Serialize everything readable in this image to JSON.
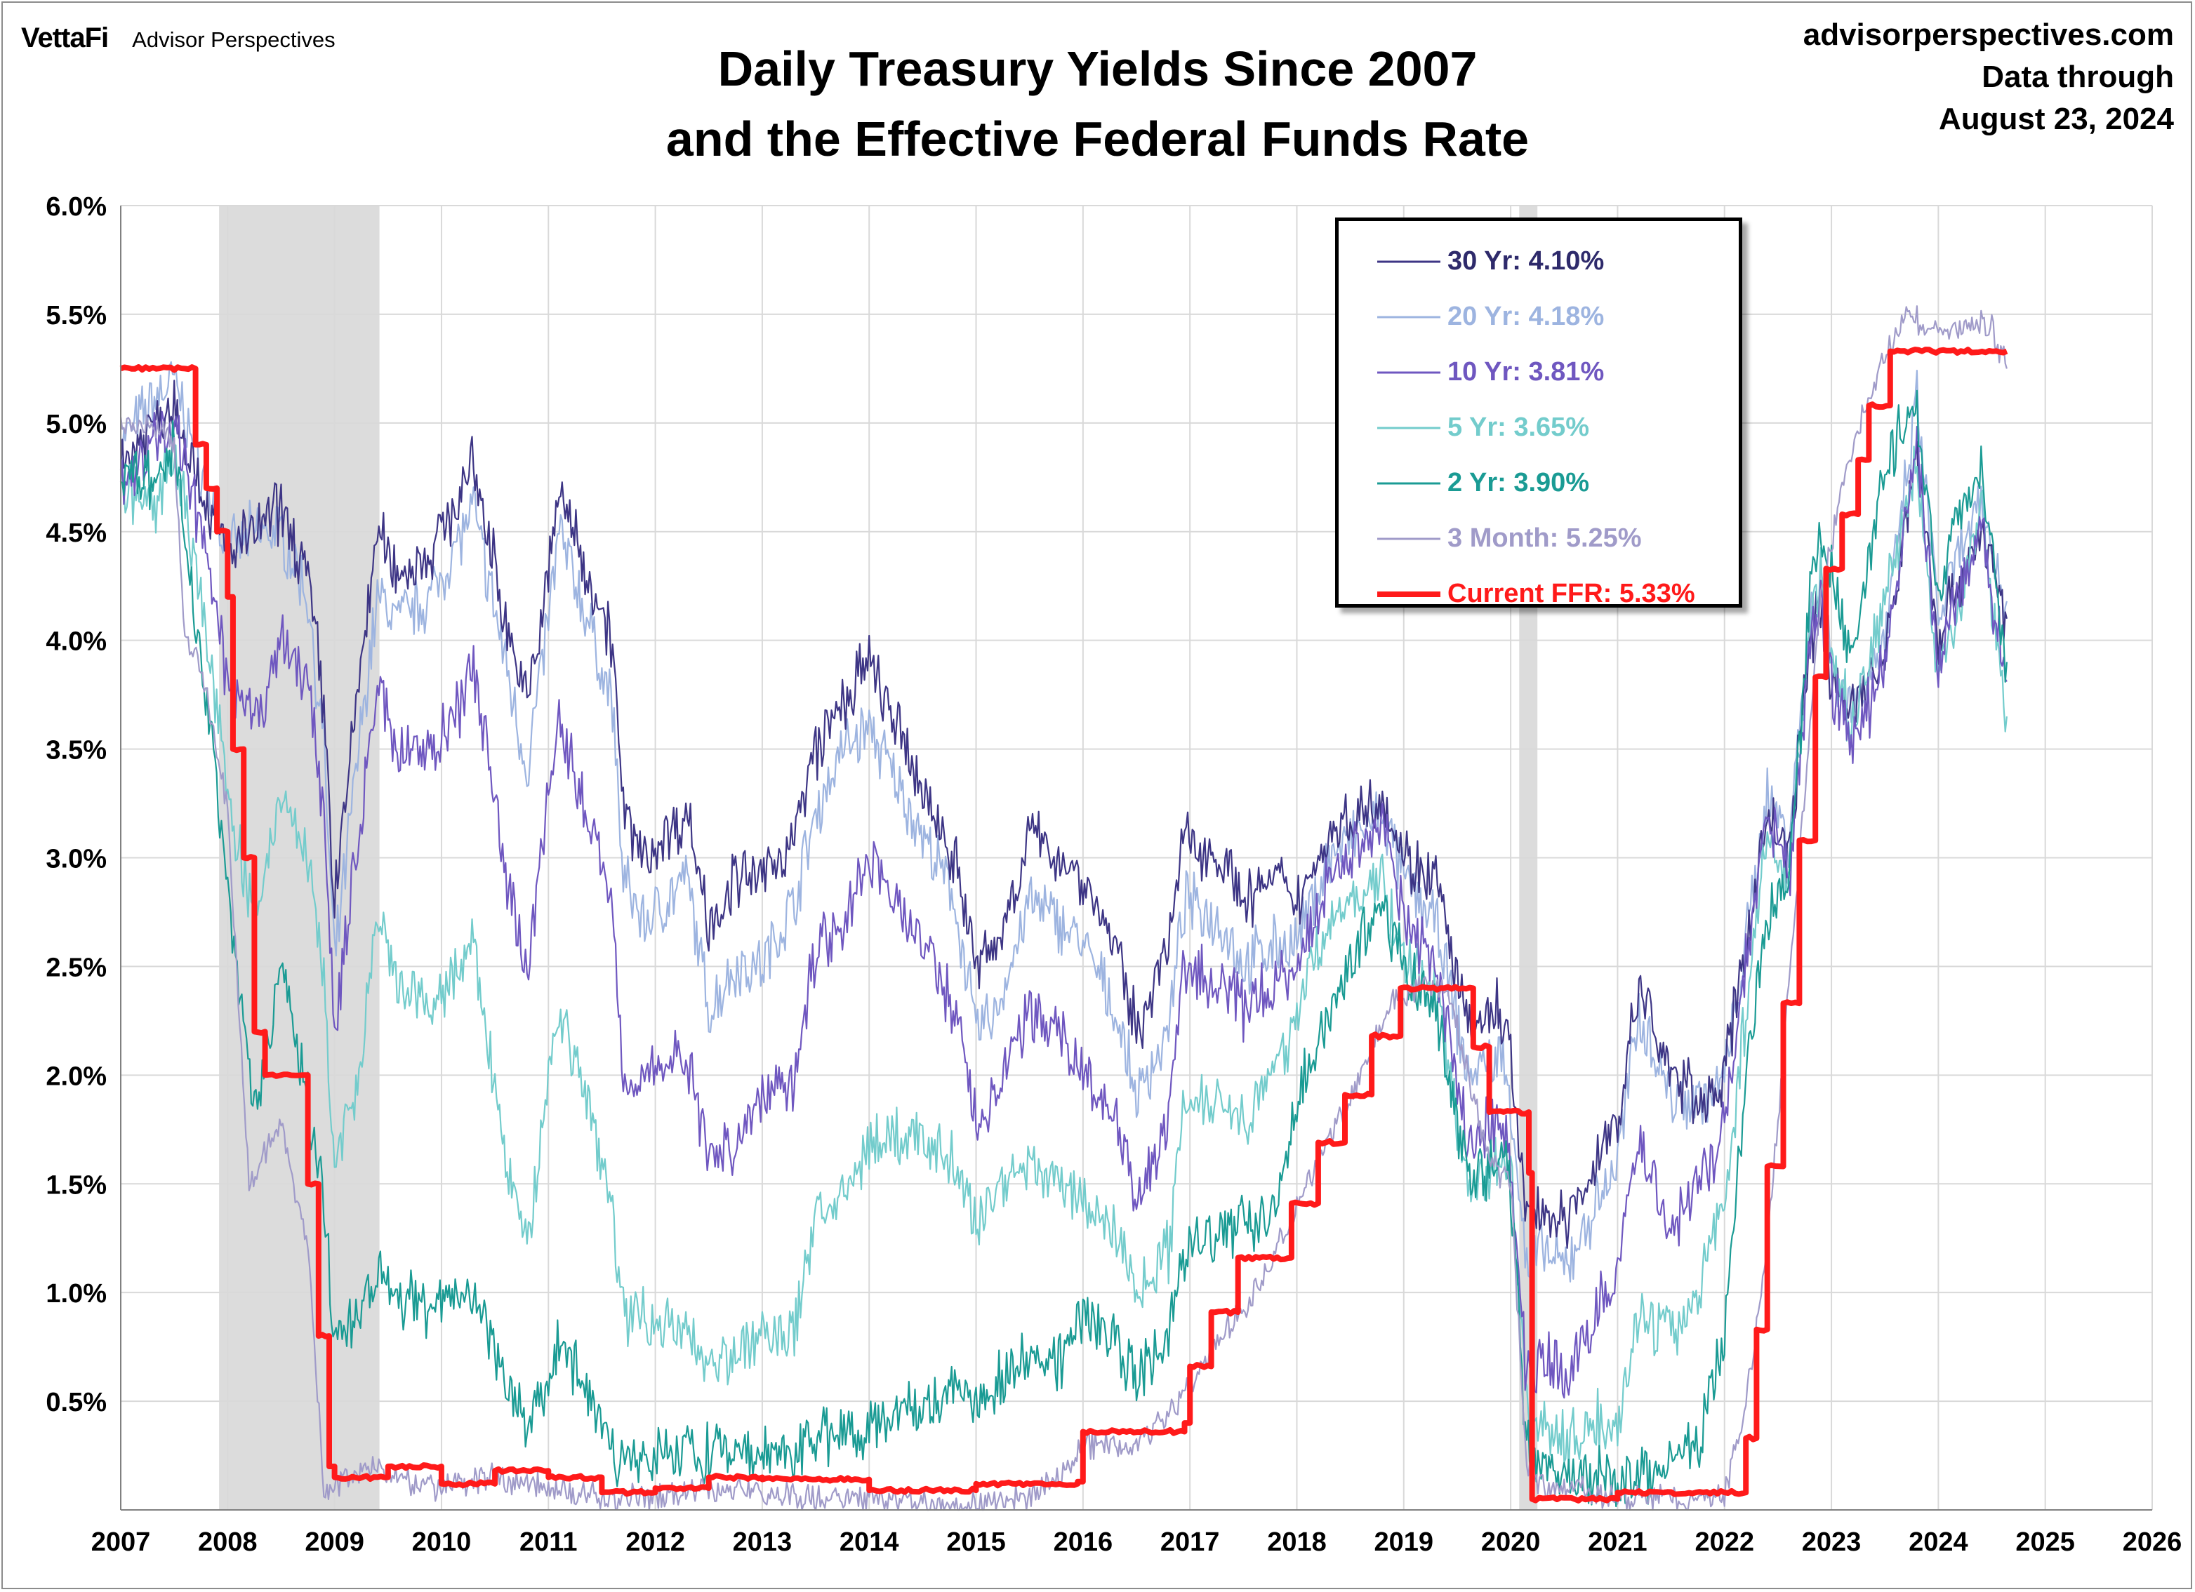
{
  "header": {
    "brand_logo": "VettaFi",
    "brand_sub": "Advisor Perspectives",
    "title_line1": "Daily Treasury Yields Since 2007",
    "title_line2": "and the Effective Federal Funds Rate",
    "source_site": "advisorperspectives.com",
    "source_line2": "Data through",
    "source_line3": "August 23, 2024"
  },
  "legend": {
    "items": [
      {
        "label": "30 Yr: 4.10%",
        "color": "#3d3585"
      },
      {
        "label": "20 Yr: 4.18%",
        "color": "#9db4e0"
      },
      {
        "label": "10 Yr: 3.81%",
        "color": "#6f57c0"
      },
      {
        "label": "5 Yr: 3.65%",
        "color": "#73cccc"
      },
      {
        "label": "2 Yr: 3.90%",
        "color": "#1a9b94"
      },
      {
        "label": "3 Month: 5.25%",
        "color": "#a09bc9"
      },
      {
        "label": "Current FFR: 5.33%",
        "color": "#ff1a1a"
      }
    ]
  },
  "chart_data": {
    "type": "line",
    "title": "Daily Treasury Yields Since 2007 and the Effective Federal Funds Rate",
    "xlabel": "",
    "ylabel": "",
    "xlim": [
      2007,
      2026
    ],
    "ylim": [
      0,
      6.0
    ],
    "x_ticks": [
      "2007",
      "2008",
      "2009",
      "2010",
      "2011",
      "2012",
      "2013",
      "2014",
      "2015",
      "2016",
      "2017",
      "2018",
      "2019",
      "2020",
      "2021",
      "2022",
      "2023",
      "2024",
      "2025",
      "2026"
    ],
    "y_ticks": [
      "0.5%",
      "1.0%",
      "1.5%",
      "2.0%",
      "2.5%",
      "3.0%",
      "3.5%",
      "4.0%",
      "4.5%",
      "5.0%",
      "5.5%",
      "6.0%"
    ],
    "grid": true,
    "legend_position": "top-right",
    "recessions": [
      [
        2007.92,
        2009.42
      ],
      [
        2020.08,
        2020.25
      ]
    ],
    "recession_color": "#dcdcdc",
    "series": [
      {
        "name": "30 Yr: 4.10%",
        "color": "#3d3585",
        "x": [
          2007.0,
          2007.3,
          2007.5,
          2007.75,
          2008.0,
          2008.25,
          2008.5,
          2008.75,
          2008.9,
          2009.0,
          2009.2,
          2009.4,
          2009.6,
          2009.9,
          2010.2,
          2010.3,
          2010.6,
          2010.8,
          2011.0,
          2011.1,
          2011.3,
          2011.6,
          2011.7,
          2011.9,
          2012.3,
          2012.5,
          2012.75,
          2013.0,
          2013.3,
          2013.5,
          2013.75,
          2014.0,
          2014.5,
          2014.8,
          2015.0,
          2015.2,
          2015.5,
          2015.8,
          2016.0,
          2016.3,
          2016.5,
          2016.8,
          2016.95,
          2017.3,
          2017.5,
          2017.8,
          2018.0,
          2018.3,
          2018.8,
          2019.0,
          2019.3,
          2019.6,
          2019.9,
          2020.0,
          2020.15,
          2020.3,
          2020.5,
          2020.8,
          2021.0,
          2021.2,
          2021.5,
          2021.75,
          2021.9,
          2022.0,
          2022.2,
          2022.4,
          2022.6,
          2022.8,
          2022.9,
          2023.0,
          2023.2,
          2023.5,
          2023.8,
          2024.0,
          2024.2,
          2024.4,
          2024.64
        ],
        "y": [
          4.8,
          5.0,
          5.1,
          4.7,
          4.4,
          4.5,
          4.6,
          4.3,
          3.7,
          2.8,
          3.7,
          4.5,
          4.3,
          4.4,
          4.7,
          4.8,
          4.1,
          3.7,
          4.3,
          4.7,
          4.4,
          4.0,
          3.2,
          3.0,
          3.2,
          2.7,
          2.9,
          2.9,
          3.1,
          3.5,
          3.7,
          3.9,
          3.3,
          3.0,
          2.5,
          2.6,
          3.1,
          3.0,
          2.9,
          2.6,
          2.2,
          2.6,
          3.1,
          3.0,
          2.8,
          2.9,
          2.8,
          3.1,
          3.3,
          3.0,
          2.9,
          2.2,
          2.3,
          2.1,
          1.3,
          1.4,
          1.3,
          1.6,
          1.8,
          2.4,
          2.0,
          1.9,
          1.9,
          2.0,
          2.6,
          3.2,
          3.0,
          4.0,
          4.2,
          3.8,
          3.7,
          3.9,
          4.9,
          4.0,
          4.3,
          4.5,
          4.1
        ]
      },
      {
        "name": "20 Yr: 4.18%",
        "color": "#9db4e0",
        "x": [
          2007.0,
          2007.3,
          2007.5,
          2007.75,
          2008.0,
          2008.25,
          2008.5,
          2008.75,
          2008.9,
          2009.0,
          2009.2,
          2009.4,
          2009.6,
          2009.9,
          2010.2,
          2010.3,
          2010.6,
          2010.8,
          2011.0,
          2011.1,
          2011.3,
          2011.6,
          2011.7,
          2011.9,
          2012.3,
          2012.5,
          2012.75,
          2013.0,
          2013.3,
          2013.5,
          2013.75,
          2014.0,
          2014.5,
          2014.8,
          2015.0,
          2015.2,
          2015.5,
          2015.8,
          2016.0,
          2016.3,
          2016.5,
          2016.8,
          2016.95,
          2017.3,
          2017.5,
          2017.8,
          2018.0,
          2018.3,
          2018.8,
          2019.0,
          2019.3,
          2019.6,
          2019.9,
          2020.0,
          2020.15,
          2020.3,
          2020.5,
          2020.8,
          2021.0,
          2021.2,
          2021.5,
          2021.75,
          2021.9,
          2022.0,
          2022.2,
          2022.4,
          2022.6,
          2022.8,
          2022.9,
          2023.0,
          2023.2,
          2023.5,
          2023.8,
          2024.0,
          2024.2,
          2024.4,
          2024.64
        ],
        "y": [
          4.9,
          5.1,
          5.2,
          4.8,
          4.4,
          4.5,
          4.5,
          4.2,
          3.5,
          2.5,
          3.4,
          4.2,
          4.1,
          4.2,
          4.5,
          4.6,
          3.9,
          3.4,
          4.1,
          4.5,
          4.2,
          3.7,
          2.9,
          2.7,
          2.9,
          2.3,
          2.5,
          2.5,
          2.8,
          3.2,
          3.5,
          3.6,
          3.1,
          2.8,
          2.2,
          2.3,
          2.8,
          2.7,
          2.6,
          2.3,
          1.9,
          2.2,
          2.8,
          2.7,
          2.5,
          2.6,
          2.6,
          3.0,
          3.2,
          2.9,
          2.7,
          2.0,
          2.1,
          1.9,
          1.1,
          1.2,
          1.1,
          1.4,
          1.6,
          2.3,
          1.9,
          1.9,
          1.9,
          2.0,
          2.6,
          3.3,
          3.1,
          4.1,
          4.3,
          3.9,
          3.7,
          4.0,
          5.1,
          4.1,
          4.4,
          4.6,
          4.18
        ]
      },
      {
        "name": "10 Yr: 3.81%",
        "color": "#6f57c0",
        "x": [
          2007.0,
          2007.3,
          2007.5,
          2007.75,
          2008.0,
          2008.25,
          2008.5,
          2008.75,
          2008.9,
          2009.0,
          2009.2,
          2009.4,
          2009.6,
          2009.9,
          2010.2,
          2010.3,
          2010.6,
          2010.8,
          2011.0,
          2011.1,
          2011.3,
          2011.6,
          2011.7,
          2011.9,
          2012.3,
          2012.5,
          2012.75,
          2013.0,
          2013.3,
          2013.5,
          2013.75,
          2014.0,
          2014.5,
          2014.8,
          2015.0,
          2015.2,
          2015.5,
          2015.8,
          2016.0,
          2016.3,
          2016.5,
          2016.8,
          2016.95,
          2017.3,
          2017.5,
          2017.8,
          2018.0,
          2018.3,
          2018.8,
          2019.0,
          2019.3,
          2019.6,
          2019.9,
          2020.0,
          2020.15,
          2020.3,
          2020.5,
          2020.8,
          2021.0,
          2021.2,
          2021.5,
          2021.75,
          2021.9,
          2022.0,
          2022.2,
          2022.4,
          2022.6,
          2022.8,
          2022.9,
          2023.0,
          2023.2,
          2023.5,
          2023.8,
          2024.0,
          2024.2,
          2024.4,
          2024.64
        ],
        "y": [
          4.7,
          4.9,
          5.0,
          4.5,
          3.8,
          3.6,
          4.0,
          3.8,
          3.2,
          2.2,
          3.0,
          3.8,
          3.5,
          3.5,
          3.7,
          3.9,
          2.9,
          2.5,
          3.3,
          3.6,
          3.3,
          2.8,
          2.0,
          2.0,
          2.1,
          1.6,
          1.7,
          1.9,
          2.0,
          2.6,
          2.7,
          3.0,
          2.6,
          2.3,
          1.8,
          1.9,
          2.3,
          2.2,
          2.0,
          1.8,
          1.4,
          1.8,
          2.5,
          2.4,
          2.3,
          2.4,
          2.5,
          2.9,
          3.2,
          2.7,
          2.5,
          1.7,
          1.8,
          1.6,
          0.6,
          0.7,
          0.6,
          0.9,
          1.1,
          1.7,
          1.3,
          1.5,
          1.6,
          1.8,
          2.5,
          3.2,
          2.9,
          4.0,
          4.2,
          3.8,
          3.5,
          3.9,
          4.9,
          3.9,
          4.2,
          4.5,
          3.81
        ]
      },
      {
        "name": "5 Yr: 3.65%",
        "color": "#73cccc",
        "x": [
          2007.0,
          2007.3,
          2007.5,
          2007.75,
          2008.0,
          2008.25,
          2008.5,
          2008.75,
          2008.9,
          2009.0,
          2009.2,
          2009.4,
          2009.6,
          2009.9,
          2010.2,
          2010.3,
          2010.6,
          2010.8,
          2011.0,
          2011.1,
          2011.3,
          2011.6,
          2011.7,
          2011.9,
          2012.3,
          2012.5,
          2012.75,
          2013.0,
          2013.3,
          2013.5,
          2013.75,
          2014.0,
          2014.5,
          2014.8,
          2015.0,
          2015.2,
          2015.5,
          2015.8,
          2016.0,
          2016.3,
          2016.5,
          2016.8,
          2016.95,
          2017.3,
          2017.5,
          2017.8,
          2018.0,
          2018.3,
          2018.8,
          2019.0,
          2019.3,
          2019.6,
          2019.9,
          2020.0,
          2020.15,
          2020.3,
          2020.5,
          2020.8,
          2021.0,
          2021.2,
          2021.5,
          2021.75,
          2021.9,
          2022.0,
          2022.2,
          2022.4,
          2022.6,
          2022.8,
          2022.9,
          2023.0,
          2023.2,
          2023.5,
          2023.8,
          2024.0,
          2024.2,
          2024.4,
          2024.64
        ],
        "y": [
          4.7,
          4.6,
          4.9,
          4.2,
          3.3,
          2.7,
          3.3,
          3.0,
          2.4,
          1.6,
          1.9,
          2.7,
          2.4,
          2.3,
          2.5,
          2.6,
          1.6,
          1.2,
          2.0,
          2.3,
          2.0,
          1.4,
          0.9,
          0.9,
          0.8,
          0.7,
          0.7,
          0.8,
          0.8,
          1.4,
          1.4,
          1.7,
          1.7,
          1.6,
          1.3,
          1.5,
          1.6,
          1.5,
          1.4,
          1.3,
          1.0,
          1.2,
          1.9,
          1.9,
          1.8,
          2.0,
          2.3,
          2.7,
          2.9,
          2.5,
          2.4,
          1.5,
          1.6,
          1.6,
          0.5,
          0.4,
          0.3,
          0.4,
          0.4,
          0.9,
          0.8,
          1.0,
          1.3,
          1.4,
          2.3,
          3.1,
          2.9,
          4.1,
          4.3,
          3.9,
          3.6,
          4.2,
          4.8,
          3.8,
          4.2,
          4.6,
          3.65
        ]
      },
      {
        "name": "2 Yr: 3.90%",
        "color": "#1a9b94",
        "x": [
          2007.0,
          2007.3,
          2007.5,
          2007.75,
          2008.0,
          2008.25,
          2008.5,
          2008.75,
          2008.9,
          2009.0,
          2009.2,
          2009.4,
          2009.6,
          2009.9,
          2010.2,
          2010.3,
          2010.6,
          2010.8,
          2011.0,
          2011.1,
          2011.3,
          2011.6,
          2011.7,
          2011.9,
          2012.3,
          2012.5,
          2012.75,
          2013.0,
          2013.3,
          2013.5,
          2013.75,
          2014.0,
          2014.5,
          2014.8,
          2015.0,
          2015.2,
          2015.5,
          2015.8,
          2016.0,
          2016.3,
          2016.5,
          2016.8,
          2016.95,
          2017.3,
          2017.5,
          2017.8,
          2018.0,
          2018.3,
          2018.8,
          2019.0,
          2019.3,
          2019.6,
          2019.9,
          2020.0,
          2020.15,
          2020.3,
          2020.5,
          2020.8,
          2021.0,
          2021.2,
          2021.5,
          2021.75,
          2021.9,
          2022.0,
          2022.2,
          2022.4,
          2022.6,
          2022.8,
          2022.9,
          2023.0,
          2023.2,
          2023.5,
          2023.8,
          2024.0,
          2024.2,
          2024.4,
          2024.64
        ],
        "y": [
          4.8,
          4.7,
          4.9,
          3.9,
          2.9,
          1.8,
          2.5,
          1.9,
          1.4,
          0.8,
          0.9,
          1.1,
          1.0,
          0.9,
          1.0,
          1.0,
          0.6,
          0.4,
          0.6,
          0.8,
          0.6,
          0.3,
          0.2,
          0.25,
          0.3,
          0.25,
          0.25,
          0.25,
          0.25,
          0.35,
          0.35,
          0.4,
          0.5,
          0.55,
          0.5,
          0.6,
          0.7,
          0.7,
          0.9,
          0.8,
          0.6,
          0.8,
          1.2,
          1.3,
          1.3,
          1.4,
          1.9,
          2.3,
          2.8,
          2.5,
          2.3,
          1.5,
          1.6,
          1.5,
          0.3,
          0.2,
          0.15,
          0.15,
          0.12,
          0.15,
          0.22,
          0.3,
          0.6,
          0.8,
          2.0,
          2.7,
          2.9,
          4.2,
          4.5,
          4.3,
          3.9,
          4.8,
          5.1,
          4.2,
          4.6,
          4.8,
          3.9
        ]
      },
      {
        "name": "3 Month: 5.25%",
        "color": "#a09bc9",
        "x": [
          2007.0,
          2007.3,
          2007.5,
          2007.6,
          2007.75,
          2008.0,
          2008.2,
          2008.5,
          2008.75,
          2008.9,
          2009.0,
          2009.3,
          2009.6,
          2010.0,
          2010.5,
          2011.0,
          2011.5,
          2012.0,
          2012.5,
          2013.0,
          2013.5,
          2014.0,
          2014.5,
          2015.0,
          2015.5,
          2015.9,
          2016.0,
          2016.5,
          2016.9,
          2017.3,
          2017.6,
          2018.0,
          2018.5,
          2018.9,
          2019.1,
          2019.4,
          2019.6,
          2019.8,
          2020.0,
          2020.15,
          2020.3,
          2020.6,
          2021.0,
          2021.5,
          2022.0,
          2022.2,
          2022.4,
          2022.6,
          2022.9,
          2023.1,
          2023.4,
          2023.7,
          2024.0,
          2024.3,
          2024.5,
          2024.64
        ],
        "y": [
          5.0,
          5.0,
          4.9,
          4.0,
          3.9,
          3.2,
          1.5,
          1.8,
          1.2,
          0.1,
          0.1,
          0.2,
          0.15,
          0.1,
          0.15,
          0.1,
          0.05,
          0.05,
          0.1,
          0.08,
          0.05,
          0.05,
          0.03,
          0.03,
          0.05,
          0.2,
          0.3,
          0.3,
          0.5,
          0.8,
          1.0,
          1.4,
          1.9,
          2.35,
          2.4,
          2.4,
          2.0,
          1.6,
          1.5,
          0.2,
          0.1,
          0.1,
          0.05,
          0.05,
          0.05,
          0.5,
          1.2,
          2.4,
          4.2,
          4.7,
          5.2,
          5.5,
          5.4,
          5.45,
          5.45,
          5.25
        ]
      },
      {
        "name": "Current FFR: 5.33%",
        "color": "#ff1a1a",
        "x": [
          2007.0,
          2007.6,
          2007.7,
          2007.8,
          2007.9,
          2008.0,
          2008.05,
          2008.15,
          2008.25,
          2008.35,
          2008.7,
          2008.75,
          2008.85,
          2008.95,
          2009.0,
          2009.5,
          2010.0,
          2010.5,
          2011.0,
          2011.5,
          2012.0,
          2012.5,
          2013.0,
          2014.0,
          2015.0,
          2015.95,
          2016.0,
          2016.95,
          2017.0,
          2017.2,
          2017.45,
          2017.95,
          2018.2,
          2018.45,
          2018.7,
          2018.97,
          2019.55,
          2019.65,
          2019.8,
          2020.17,
          2020.2,
          2021.0,
          2022.0,
          2022.2,
          2022.3,
          2022.4,
          2022.55,
          2022.7,
          2022.85,
          2022.95,
          2023.1,
          2023.25,
          2023.35,
          2023.55,
          2024.64
        ],
        "y": [
          5.25,
          5.25,
          4.9,
          4.7,
          4.5,
          4.2,
          3.5,
          3.0,
          2.2,
          2.0,
          2.0,
          1.5,
          0.8,
          0.2,
          0.15,
          0.2,
          0.12,
          0.18,
          0.15,
          0.08,
          0.1,
          0.15,
          0.14,
          0.09,
          0.12,
          0.13,
          0.36,
          0.4,
          0.66,
          0.91,
          1.16,
          1.41,
          1.69,
          1.91,
          2.18,
          2.4,
          2.4,
          2.13,
          1.83,
          1.55,
          0.05,
          0.08,
          0.08,
          0.33,
          0.83,
          1.58,
          2.33,
          3.08,
          3.83,
          4.33,
          4.58,
          4.83,
          5.08,
          5.33,
          5.33
        ]
      }
    ]
  }
}
